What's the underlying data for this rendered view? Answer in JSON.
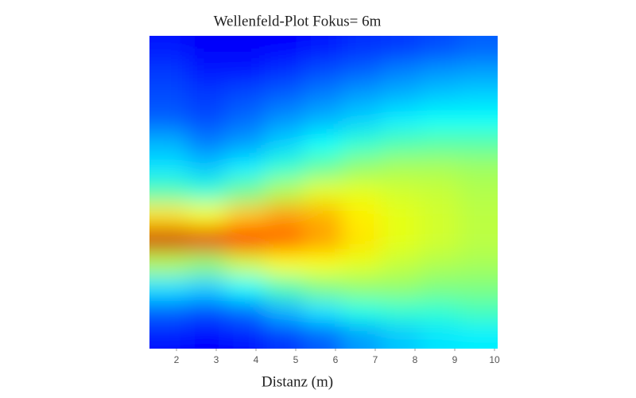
{
  "chart_data": {
    "type": "heatmap",
    "title": "Wellenfeld-Plot Fokus= 6m",
    "x_label": "Distanz (m)",
    "xlim": [
      1.32,
      10.08
    ],
    "xticks": [
      2,
      3,
      4,
      5,
      6,
      7,
      8,
      9,
      10
    ],
    "x": [
      1.81,
      2.78,
      3.75,
      4.73,
      5.7,
      6.67,
      7.65,
      8.62,
      9.59
    ],
    "colormap": [
      "#00007f",
      "#0000ff",
      "#007fff",
      "#00ffff",
      "#7fff7f",
      "#ffff00",
      "#ff7f00",
      "#ff0000",
      "#7f0000"
    ],
    "values": [
      [
        0.15,
        0.12,
        0.12,
        0.13,
        0.15,
        0.17,
        0.18,
        0.2,
        0.22
      ],
      [
        0.18,
        0.15,
        0.15,
        0.17,
        0.2,
        0.22,
        0.25,
        0.27,
        0.28
      ],
      [
        0.2,
        0.18,
        0.2,
        0.22,
        0.25,
        0.28,
        0.3,
        0.32,
        0.33
      ],
      [
        0.22,
        0.2,
        0.23,
        0.27,
        0.3,
        0.33,
        0.36,
        0.38,
        0.38
      ],
      [
        0.3,
        0.25,
        0.28,
        0.33,
        0.38,
        0.42,
        0.45,
        0.46,
        0.46
      ],
      [
        0.35,
        0.32,
        0.36,
        0.42,
        0.47,
        0.52,
        0.54,
        0.54,
        0.53
      ],
      [
        0.45,
        0.42,
        0.48,
        0.55,
        0.6,
        0.6,
        0.58,
        0.57,
        0.55
      ],
      [
        0.65,
        0.62,
        0.68,
        0.72,
        0.7,
        0.64,
        0.6,
        0.58,
        0.56
      ],
      [
        0.92,
        0.9,
        0.85,
        0.78,
        0.72,
        0.65,
        0.6,
        0.58,
        0.56
      ],
      [
        0.55,
        0.52,
        0.58,
        0.62,
        0.62,
        0.6,
        0.57,
        0.55,
        0.54
      ],
      [
        0.35,
        0.33,
        0.38,
        0.45,
        0.5,
        0.52,
        0.52,
        0.5,
        0.5
      ],
      [
        0.22,
        0.2,
        0.23,
        0.3,
        0.35,
        0.4,
        0.42,
        0.42,
        0.44
      ],
      [
        0.15,
        0.13,
        0.15,
        0.18,
        0.22,
        0.28,
        0.32,
        0.35,
        0.36
      ]
    ]
  }
}
